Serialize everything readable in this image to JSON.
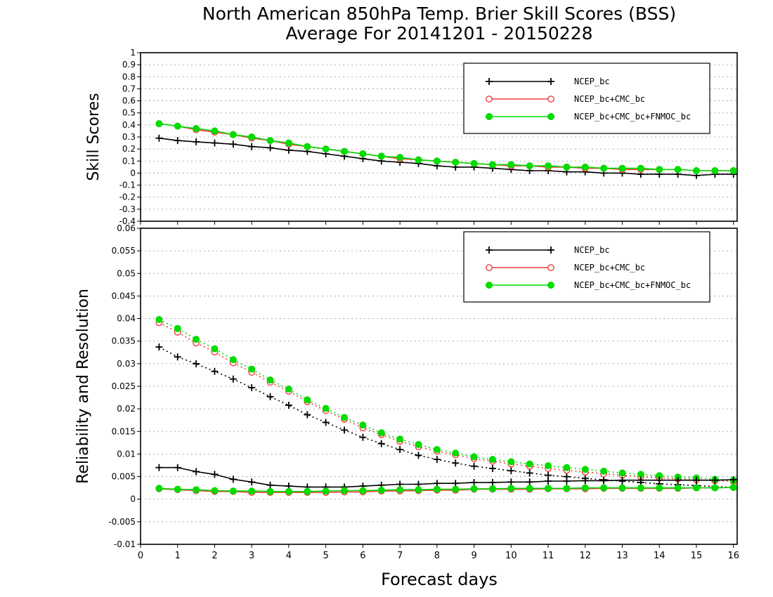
{
  "title": {
    "line1": "North American 850hPa Temp. Brier Skill Scores (BSS)",
    "line2": "Average For 20141201 - 20150228"
  },
  "xlabel": "Forecast days",
  "colors": {
    "black": "#000000",
    "red": "#f03c3c",
    "green": "#00dc00",
    "grid": "#9a9a9a"
  },
  "chart_data": [
    {
      "type": "line",
      "ylabel": "Skill Scores",
      "xlim": [
        0,
        16.1
      ],
      "ylim": [
        -0.4,
        1
      ],
      "yticks": [
        "1",
        "0.9",
        "0.8",
        "0.7",
        "0.6",
        "0.5",
        "0.4",
        "0.3",
        "0.2",
        "0.1",
        "0",
        "-0.1",
        "-0.2",
        "-0.3",
        "-0.4"
      ],
      "xticks": [
        "0",
        "1",
        "2",
        "3",
        "4",
        "5",
        "6",
        "7",
        "8",
        "9",
        "10",
        "11",
        "12",
        "13",
        "14",
        "15",
        "16"
      ],
      "x": [
        0.5,
        1,
        1.5,
        2,
        2.5,
        3,
        3.5,
        4,
        4.5,
        5,
        5.5,
        6,
        6.5,
        7,
        7.5,
        8,
        8.5,
        9,
        9.5,
        10,
        10.5,
        11,
        11.5,
        12,
        12.5,
        13,
        13.5,
        14,
        14.5,
        15,
        15.5,
        16
      ],
      "legend_position": "top-right",
      "series": [
        {
          "name": "NCEP_bc",
          "color": "black",
          "marker": "plus",
          "style": "solid",
          "values": [
            0.29,
            0.27,
            0.26,
            0.25,
            0.24,
            0.22,
            0.21,
            0.19,
            0.18,
            0.16,
            0.14,
            0.12,
            0.1,
            0.09,
            0.08,
            0.06,
            0.05,
            0.05,
            0.04,
            0.03,
            0.02,
            0.02,
            0.01,
            0.01,
            0.0,
            0.0,
            -0.01,
            -0.01,
            -0.01,
            -0.02,
            -0.01,
            -0.01
          ]
        },
        {
          "name": "NCEP_bc+CMC_bc",
          "color": "red",
          "marker": "circle",
          "style": "solid",
          "values": [
            0.41,
            0.39,
            0.36,
            0.34,
            0.32,
            0.29,
            0.27,
            0.24,
            0.22,
            0.2,
            0.18,
            0.16,
            0.14,
            0.12,
            0.11,
            0.1,
            0.09,
            0.08,
            0.07,
            0.06,
            0.06,
            0.05,
            0.05,
            0.04,
            0.04,
            0.03,
            0.03,
            0.03,
            0.03,
            0.02,
            0.02,
            0.02
          ]
        },
        {
          "name": "NCEP_bc+CMC_bc+FNMOC_bc",
          "color": "green",
          "marker": "dot",
          "style": "solid",
          "values": [
            0.41,
            0.39,
            0.37,
            0.35,
            0.32,
            0.3,
            0.27,
            0.25,
            0.22,
            0.2,
            0.18,
            0.16,
            0.14,
            0.13,
            0.11,
            0.1,
            0.09,
            0.08,
            0.07,
            0.07,
            0.06,
            0.06,
            0.05,
            0.05,
            0.04,
            0.04,
            0.04,
            0.03,
            0.03,
            0.02,
            0.02,
            0.02
          ]
        }
      ]
    },
    {
      "type": "line",
      "ylabel": "Reliability and Resolution",
      "xlim": [
        0,
        16.1
      ],
      "ylim": [
        -0.01,
        0.06
      ],
      "yticks": [
        "0.06",
        "0.055",
        "0.05",
        "0.045",
        "0.04",
        "0.035",
        "0.03",
        "0.025",
        "0.02",
        "0.015",
        "0.01",
        "0.005",
        "0",
        "-0.005",
        "-0.01"
      ],
      "xticks": [
        "0",
        "1",
        "2",
        "3",
        "4",
        "5",
        "6",
        "7",
        "8",
        "9",
        "10",
        "11",
        "12",
        "13",
        "14",
        "15",
        "16"
      ],
      "x": [
        0.5,
        1,
        1.5,
        2,
        2.5,
        3,
        3.5,
        4,
        4.5,
        5,
        5.5,
        6,
        6.5,
        7,
        7.5,
        8,
        8.5,
        9,
        9.5,
        10,
        10.5,
        11,
        11.5,
        12,
        12.5,
        13,
        13.5,
        14,
        14.5,
        15,
        15.5,
        16
      ],
      "legend_position": "top-right",
      "series": [
        {
          "name": "NCEP_bc",
          "color": "black",
          "marker": "plus",
          "style": "dotted",
          "values": [
            0.0337,
            0.0315,
            0.03,
            0.0283,
            0.0266,
            0.0247,
            0.0227,
            0.0208,
            0.0187,
            0.017,
            0.0153,
            0.0137,
            0.0123,
            0.011,
            0.0097,
            0.0088,
            0.008,
            0.0073,
            0.0068,
            0.0063,
            0.0058,
            0.0053,
            0.005,
            0.0046,
            0.0043,
            0.004,
            0.0037,
            0.0034,
            0.0032,
            0.003,
            0.0028,
            0.0026
          ]
        },
        {
          "name": "NCEP_bc+CMC_bc",
          "color": "red",
          "marker": "circle",
          "style": "dotted",
          "values": [
            0.0391,
            0.037,
            0.0346,
            0.0326,
            0.0302,
            0.0281,
            0.0259,
            0.0239,
            0.0216,
            0.0196,
            0.0177,
            0.0158,
            0.0143,
            0.0128,
            0.0116,
            0.0106,
            0.0098,
            0.009,
            0.0084,
            0.0078,
            0.0073,
            0.0068,
            0.0064,
            0.006,
            0.0056,
            0.0053,
            0.005,
            0.0047,
            0.0045,
            0.0043,
            0.0041,
            0.0039
          ]
        },
        {
          "name": "NCEP_bc+CMC_bc+FNMOC_bc",
          "color": "green",
          "marker": "dot",
          "style": "dotted",
          "values": [
            0.0398,
            0.0378,
            0.0354,
            0.0333,
            0.0309,
            0.0288,
            0.0264,
            0.0244,
            0.022,
            0.0201,
            0.0181,
            0.0164,
            0.0147,
            0.0133,
            0.0121,
            0.011,
            0.0102,
            0.0094,
            0.0088,
            0.0083,
            0.0078,
            0.0074,
            0.007,
            0.0066,
            0.0062,
            0.0058,
            0.0055,
            0.0052,
            0.0049,
            0.0047,
            0.0044,
            0.0042
          ]
        },
        {
          "name": "",
          "color": "black",
          "marker": "plus",
          "style": "solid",
          "values": [
            0.007,
            0.007,
            0.0061,
            0.0055,
            0.0044,
            0.0038,
            0.0031,
            0.0029,
            0.0027,
            0.0027,
            0.0027,
            0.0029,
            0.0031,
            0.0033,
            0.0033,
            0.0035,
            0.0035,
            0.0037,
            0.0037,
            0.0038,
            0.0038,
            0.004,
            0.004,
            0.0041,
            0.0041,
            0.0042,
            0.0042,
            0.0042,
            0.0042,
            0.0042,
            0.0042,
            0.0043
          ]
        },
        {
          "name": "",
          "color": "red",
          "marker": "circle",
          "style": "solid",
          "values": [
            0.0023,
            0.0021,
            0.0019,
            0.0017,
            0.0017,
            0.0015,
            0.0015,
            0.0015,
            0.0015,
            0.0015,
            0.0016,
            0.0016,
            0.0018,
            0.0018,
            0.0019,
            0.002,
            0.002,
            0.0022,
            0.0022,
            0.0022,
            0.0022,
            0.0023,
            0.0023,
            0.0023,
            0.0024,
            0.0024,
            0.0024,
            0.0024,
            0.0024,
            0.0025,
            0.0025,
            0.0026
          ]
        },
        {
          "name": "",
          "color": "green",
          "marker": "dot",
          "style": "solid",
          "values": [
            0.0024,
            0.0022,
            0.0021,
            0.0019,
            0.0018,
            0.0018,
            0.0017,
            0.0017,
            0.0017,
            0.0018,
            0.0019,
            0.0019,
            0.002,
            0.0021,
            0.0021,
            0.0022,
            0.0022,
            0.0023,
            0.0023,
            0.0024,
            0.0024,
            0.0024,
            0.0024,
            0.0025,
            0.0025,
            0.0025,
            0.0025,
            0.0025,
            0.0025,
            0.0025,
            0.0025,
            0.0026
          ]
        }
      ]
    }
  ]
}
